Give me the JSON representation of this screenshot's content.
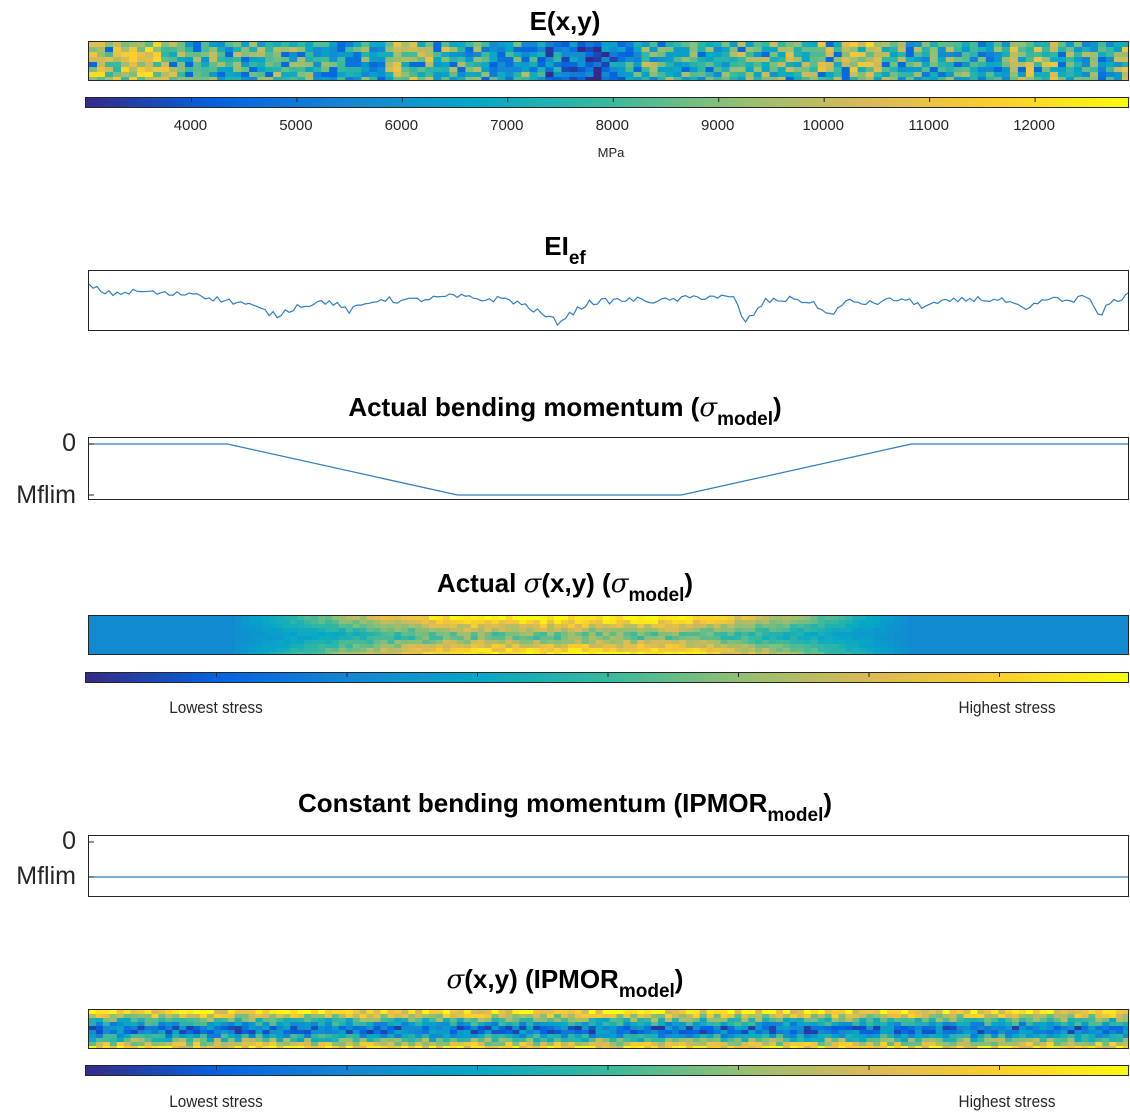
{
  "titles": {
    "e": "E(x,y)",
    "ei_main": "EI",
    "ei_sub": "ef",
    "actual_bm_main": "Actual bending momentum (",
    "actual_bm_sym": "σ",
    "actual_bm_sub": "model",
    "actual_bm_end": ")",
    "actual_sigma_pre": "Actual ",
    "actual_sigma_sym": "σ",
    "actual_sigma_mid": "(x,y) (",
    "actual_sigma_sym2": "σ",
    "actual_sigma_sub": "model",
    "actual_sigma_end": ")",
    "const_bm_main": "Constant bending momentum (IPMOR",
    "const_bm_sub": "model",
    "const_bm_end": ")",
    "ipmor_sigma_sym": "σ",
    "ipmor_sigma_mid": "(x,y) (IPMOR",
    "ipmor_sigma_sub": "model",
    "ipmor_sigma_end": ")"
  },
  "colorbar_e": {
    "ticks": [
      "4000",
      "5000",
      "6000",
      "7000",
      "8000",
      "9000",
      "10000",
      "11000",
      "12000"
    ],
    "unit": "MPa",
    "range": [
      3000,
      12900
    ]
  },
  "stress_colorbar": {
    "low": "Lowest stress",
    "high": "Highest stress"
  },
  "moment_axis": {
    "top": "0",
    "bottom": "Mflim"
  },
  "colors": {
    "line": "#2f7ec2",
    "axis": "#262626",
    "parula": [
      "#352a87",
      "#0363e1",
      "#1485d4",
      "#06a7c6",
      "#38b99e",
      "#92bf73",
      "#d9ba56",
      "#fcce2e",
      "#f9fb0e"
    ]
  },
  "chart_data": [
    {
      "type": "heatmap",
      "title": "E(x,y)",
      "colorbar_label": "MPa",
      "colorbar_ticks": [
        4000,
        5000,
        6000,
        7000,
        8000,
        9000,
        10000,
        11000,
        12000
      ],
      "clim": [
        3000,
        12900
      ]
    },
    {
      "type": "line",
      "title": "EI_ef",
      "x": [
        0,
        0.02,
        0.05,
        0.08,
        0.1,
        0.12,
        0.15,
        0.18,
        0.2,
        0.23,
        0.25,
        0.28,
        0.3,
        0.33,
        0.35,
        0.38,
        0.4,
        0.42,
        0.45,
        0.48,
        0.5,
        0.52,
        0.55,
        0.58,
        0.6,
        0.62,
        0.63,
        0.65,
        0.68,
        0.7,
        0.71,
        0.73,
        0.75,
        0.78,
        0.8,
        0.83,
        0.85,
        0.88,
        0.9,
        0.92,
        0.94,
        0.96,
        0.97,
        0.98,
        1.0
      ],
      "y": [
        0.85,
        0.7,
        0.75,
        0.68,
        0.72,
        0.6,
        0.5,
        0.25,
        0.45,
        0.55,
        0.35,
        0.6,
        0.55,
        0.6,
        0.65,
        0.58,
        0.6,
        0.45,
        0.12,
        0.52,
        0.55,
        0.58,
        0.55,
        0.62,
        0.65,
        0.6,
        0.1,
        0.55,
        0.6,
        0.45,
        0.25,
        0.55,
        0.5,
        0.6,
        0.45,
        0.55,
        0.6,
        0.55,
        0.35,
        0.6,
        0.55,
        0.65,
        0.2,
        0.5,
        0.7
      ]
    },
    {
      "type": "line",
      "title": "Actual bending momentum (σ_model)",
      "x": [
        0,
        0.133,
        0.354,
        0.569,
        0.79,
        1.0
      ],
      "y": [
        "0",
        "0",
        "Mflim",
        "Mflim",
        "0",
        "0"
      ]
    },
    {
      "type": "heatmap",
      "title": "Actual σ(x,y) (σ_model)",
      "colorbar_labels": [
        "Lowest stress",
        "Highest stress"
      ]
    },
    {
      "type": "line",
      "title": "Constant bending momentum (IPMOR_model)",
      "x": [
        0,
        1.0
      ],
      "y": [
        "Mflim",
        "Mflim"
      ]
    },
    {
      "type": "heatmap",
      "title": "σ(x,y) (IPMOR_model)",
      "colorbar_labels": [
        "Lowest stress",
        "Highest stress"
      ]
    }
  ]
}
